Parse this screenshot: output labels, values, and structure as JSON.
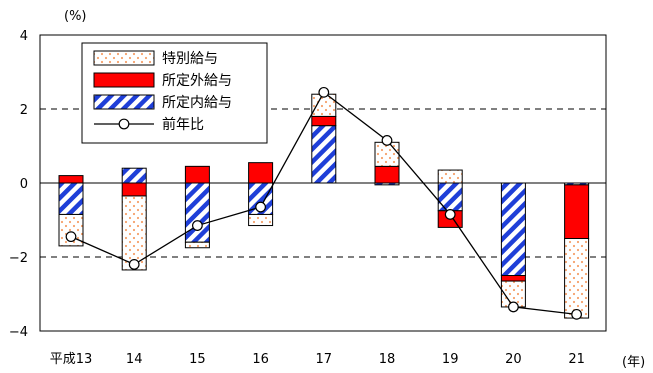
{
  "chart_data": {
    "type": "bar",
    "y_unit": "(%)",
    "x_unit": "(年)",
    "categories": [
      "平成13",
      "14",
      "15",
      "16",
      "17",
      "18",
      "19",
      "20",
      "21"
    ],
    "ylim": [
      -4,
      4
    ],
    "yticks": [
      {
        "value": 4,
        "label": "4"
      },
      {
        "value": 2,
        "label": "2"
      },
      {
        "value": 0,
        "label": "0"
      },
      {
        "value": -2,
        "label": "−2"
      },
      {
        "value": -4,
        "label": "−4"
      }
    ],
    "dashed_gridlines": [
      2,
      -2
    ],
    "zero_line": true,
    "legend_position": "top-left",
    "colors": {
      "special": "#f5b482",
      "overtime": "#ff0000",
      "scheduled": "#1f3fd8",
      "line": "#000000"
    },
    "series": [
      {
        "key": "special",
        "name": "特別給与",
        "kind": "bar",
        "values": [
          -0.85,
          -2.0,
          -0.15,
          -0.3,
          0.6,
          0.65,
          0.35,
          -0.7,
          -2.15
        ]
      },
      {
        "key": "overtime",
        "name": "所定外給与",
        "kind": "bar",
        "values": [
          0.2,
          -0.35,
          0.45,
          0.55,
          0.25,
          0.45,
          -0.45,
          -0.15,
          -1.45
        ]
      },
      {
        "key": "scheduled",
        "name": "所定内給与",
        "kind": "bar",
        "values": [
          -0.85,
          0.4,
          -1.6,
          -0.85,
          1.55,
          -0.05,
          -0.75,
          -2.5,
          -0.05
        ]
      },
      {
        "key": "line",
        "name": "前年比",
        "kind": "line",
        "values": [
          -1.45,
          -2.2,
          -1.15,
          -0.65,
          2.45,
          1.15,
          -0.85,
          -3.35,
          -3.55
        ]
      }
    ]
  }
}
